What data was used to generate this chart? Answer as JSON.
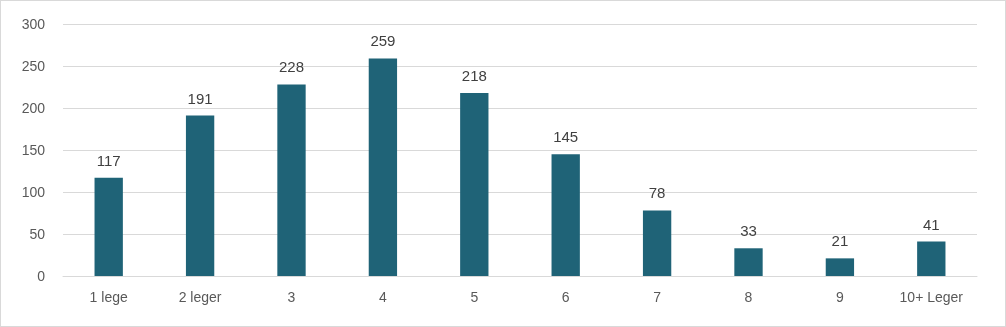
{
  "chart_data": {
    "type": "bar",
    "categories": [
      "1 lege",
      "2 leger",
      "3",
      "4",
      "5",
      "6",
      "7",
      "8",
      "9",
      "10+ Leger"
    ],
    "values": [
      117,
      191,
      228,
      259,
      218,
      145,
      78,
      33,
      21,
      41
    ],
    "color": "#1f6377",
    "ylim": [
      0,
      300
    ],
    "yticks": [
      0,
      50,
      100,
      150,
      200,
      250,
      300
    ],
    "grid": "y",
    "data_labels": true
  }
}
